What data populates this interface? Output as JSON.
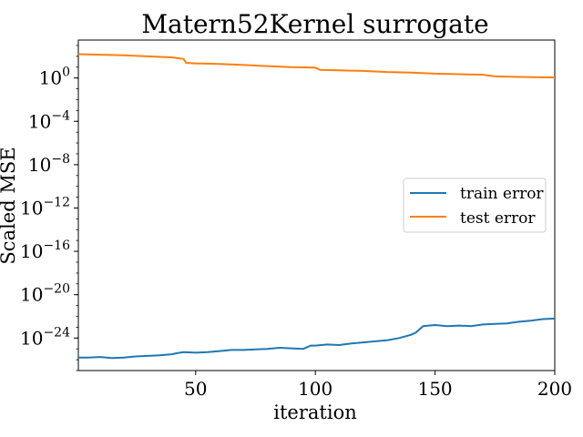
{
  "chart_data": {
    "type": "line",
    "title": "Matern52Kernel surrogate",
    "xlabel": "iteration",
    "ylabel": "Scaled MSE",
    "xlim": [
      1,
      200
    ],
    "ylim_log10": [
      -27,
      3.5
    ],
    "yscale": "log",
    "grid": false,
    "legend_position": "center-right",
    "x_ticks": [
      50,
      100,
      150,
      200
    ],
    "y_ticks": [
      {
        "exp": 0,
        "label": "10^0"
      },
      {
        "exp": -4,
        "label": "10^-4"
      },
      {
        "exp": -8,
        "label": "10^-8"
      },
      {
        "exp": -12,
        "label": "10^-12"
      },
      {
        "exp": -16,
        "label": "10^-16"
      },
      {
        "exp": -20,
        "label": "10^-20"
      },
      {
        "exp": -24,
        "label": "10^-24"
      }
    ],
    "series": [
      {
        "name": "train error",
        "color": "#1f77b4",
        "points_log10": [
          [
            1,
            -25.8
          ],
          [
            5,
            -25.8
          ],
          [
            10,
            -25.75
          ],
          [
            15,
            -25.85
          ],
          [
            20,
            -25.8
          ],
          [
            25,
            -25.7
          ],
          [
            30,
            -25.65
          ],
          [
            35,
            -25.6
          ],
          [
            40,
            -25.5
          ],
          [
            42,
            -25.4
          ],
          [
            45,
            -25.3
          ],
          [
            50,
            -25.35
          ],
          [
            55,
            -25.3
          ],
          [
            60,
            -25.2
          ],
          [
            65,
            -25.1
          ],
          [
            70,
            -25.1
          ],
          [
            75,
            -25.05
          ],
          [
            80,
            -25.0
          ],
          [
            85,
            -24.9
          ],
          [
            90,
            -24.95
          ],
          [
            95,
            -25.0
          ],
          [
            98,
            -24.7
          ],
          [
            100,
            -24.7
          ],
          [
            105,
            -24.6
          ],
          [
            110,
            -24.65
          ],
          [
            115,
            -24.5
          ],
          [
            120,
            -24.4
          ],
          [
            125,
            -24.3
          ],
          [
            130,
            -24.2
          ],
          [
            135,
            -24.0
          ],
          [
            140,
            -23.7
          ],
          [
            142,
            -23.5
          ],
          [
            145,
            -22.9
          ],
          [
            150,
            -22.8
          ],
          [
            155,
            -22.9
          ],
          [
            160,
            -22.85
          ],
          [
            165,
            -22.9
          ],
          [
            170,
            -22.75
          ],
          [
            175,
            -22.7
          ],
          [
            180,
            -22.65
          ],
          [
            185,
            -22.5
          ],
          [
            190,
            -22.4
          ],
          [
            195,
            -22.25
          ],
          [
            200,
            -22.2
          ]
        ]
      },
      {
        "name": "test error",
        "color": "#ff7f0e",
        "points_log10": [
          [
            1,
            2.2
          ],
          [
            10,
            2.15
          ],
          [
            20,
            2.1
          ],
          [
            30,
            2.0
          ],
          [
            40,
            1.9
          ],
          [
            45,
            1.75
          ],
          [
            46,
            1.4
          ],
          [
            50,
            1.35
          ],
          [
            60,
            1.3
          ],
          [
            70,
            1.2
          ],
          [
            80,
            1.1
          ],
          [
            90,
            1.0
          ],
          [
            100,
            0.95
          ],
          [
            102,
            0.75
          ],
          [
            110,
            0.7
          ],
          [
            120,
            0.65
          ],
          [
            130,
            0.55
          ],
          [
            140,
            0.5
          ],
          [
            150,
            0.4
          ],
          [
            160,
            0.35
          ],
          [
            170,
            0.3
          ],
          [
            175,
            0.15
          ],
          [
            185,
            0.1
          ],
          [
            200,
            0.05
          ]
        ]
      }
    ]
  }
}
